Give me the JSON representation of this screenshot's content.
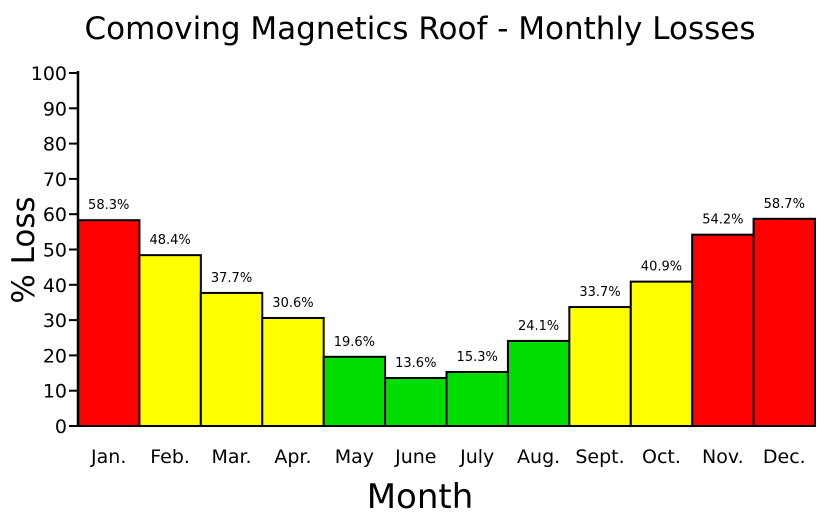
{
  "chart_data": {
    "type": "bar",
    "title": "Comoving Magnetics Roof - Monthly Losses",
    "xlabel": "Month",
    "ylabel": "% Loss",
    "ylim": [
      0,
      100
    ],
    "yticks": [
      0,
      10,
      20,
      30,
      40,
      50,
      60,
      70,
      80,
      90,
      100
    ],
    "grid": false,
    "legend": "none",
    "categories": [
      "Jan.",
      "Feb.",
      "Mar.",
      "Apr.",
      "May",
      "June",
      "July",
      "Aug.",
      "Sept.",
      "Oct.",
      "Nov.",
      "Dec."
    ],
    "values": [
      58.3,
      48.4,
      37.7,
      30.6,
      19.6,
      13.6,
      15.3,
      24.1,
      33.7,
      40.9,
      54.2,
      58.7
    ],
    "data_labels": [
      "58.3%",
      "48.4%",
      "37.7%",
      "30.6%",
      "19.6%",
      "13.6%",
      "15.3%",
      "24.1%",
      "33.7%",
      "40.9%",
      "54.2%",
      "58.7%"
    ],
    "bar_colors": [
      "#ff0000",
      "#ffff00",
      "#ffff00",
      "#ffff00",
      "#00dd00",
      "#00dd00",
      "#00dd00",
      "#00dd00",
      "#ffff00",
      "#ffff00",
      "#ff0000",
      "#ff0000"
    ]
  }
}
